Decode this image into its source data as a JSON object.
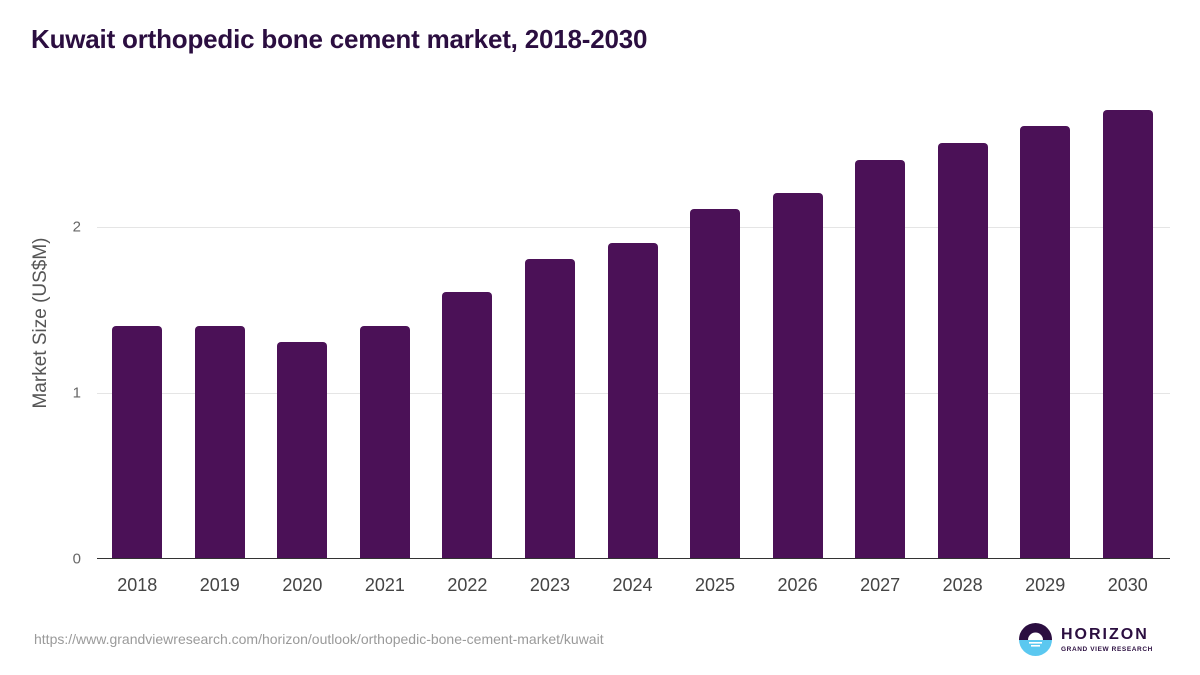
{
  "header": {
    "title": "Kuwait orthopedic bone cement market, 2018-2030"
  },
  "axes": {
    "ylabel": "Market Size (US$M)",
    "yticks": [
      "0",
      "1",
      "2"
    ]
  },
  "footer": {
    "source_url": "https://www.grandviewresearch.com/horizon/outlook/orthopedic-bone-cement-market/kuwait",
    "logo_name": "HORIZON",
    "logo_sub": "GRAND VIEW RESEARCH"
  },
  "colors": {
    "bar": "#4b1157",
    "title": "#2b0e40",
    "logo_top": "#2b0e40",
    "logo_bottom": "#5bc8f0"
  },
  "chart_data": {
    "type": "bar",
    "title": "Kuwait orthopedic bone cement market, 2018-2030",
    "xlabel": "",
    "ylabel": "Market Size (US$M)",
    "categories": [
      "2018",
      "2019",
      "2020",
      "2021",
      "2022",
      "2023",
      "2024",
      "2025",
      "2026",
      "2027",
      "2028",
      "2029",
      "2030"
    ],
    "values": [
      1.4,
      1.4,
      1.3,
      1.4,
      1.6,
      1.8,
      1.9,
      2.1,
      2.2,
      2.4,
      2.5,
      2.6,
      2.7
    ],
    "ylim": [
      0,
      3
    ],
    "yticks": [
      0,
      1,
      2
    ],
    "grid": true,
    "legend": null
  }
}
